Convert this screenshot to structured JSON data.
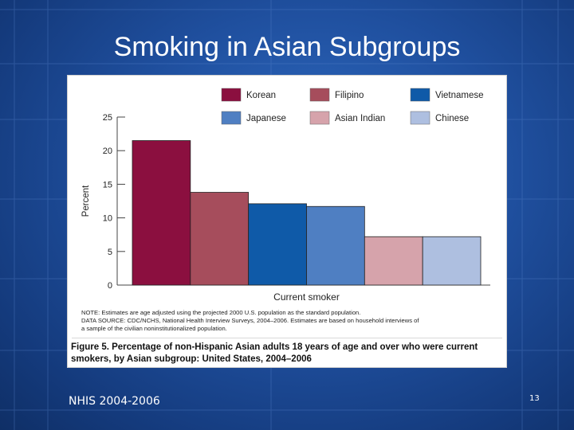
{
  "slide": {
    "title": "Smoking in Asian Subgroups",
    "footer_left": "NHIS 2004-2006",
    "page_number": "13"
  },
  "chart_data": {
    "type": "bar",
    "xlabel": "Current smoker",
    "ylabel": "Percent",
    "ylim": [
      0,
      25
    ],
    "yticks": [
      0,
      5,
      10,
      15,
      20,
      25
    ],
    "legend_position": "top",
    "series": [
      {
        "name": "Korean",
        "value": 21.5,
        "color": "#8b0f3f"
      },
      {
        "name": "Filipino",
        "value": 13.8,
        "color": "#a64d5c"
      },
      {
        "name": "Vietnamese",
        "value": 12.1,
        "color": "#0f5aa8"
      },
      {
        "name": "Japanese",
        "value": 11.7,
        "color": "#4f7fc2"
      },
      {
        "name": "Asian Indian",
        "value": 7.2,
        "color": "#d6a3ab"
      },
      {
        "name": "Chinese",
        "value": 7.2,
        "color": "#aebfe0"
      }
    ],
    "note_lines": [
      "NOTE: Estimates are age adjusted using the projected 2000 U.S. population as the standard population.",
      "DATA SOURCE: CDC/NCHS, National Health Interview Surveys, 2004–2006. Estimates are based on household interviews of",
      "a sample of the civilian noninstitutionalized population."
    ],
    "caption": "Figure 5. Percentage of non-Hispanic Asian adults 18 years of age and over who were current smokers, by Asian subgroup: United States, 2004–2006"
  }
}
